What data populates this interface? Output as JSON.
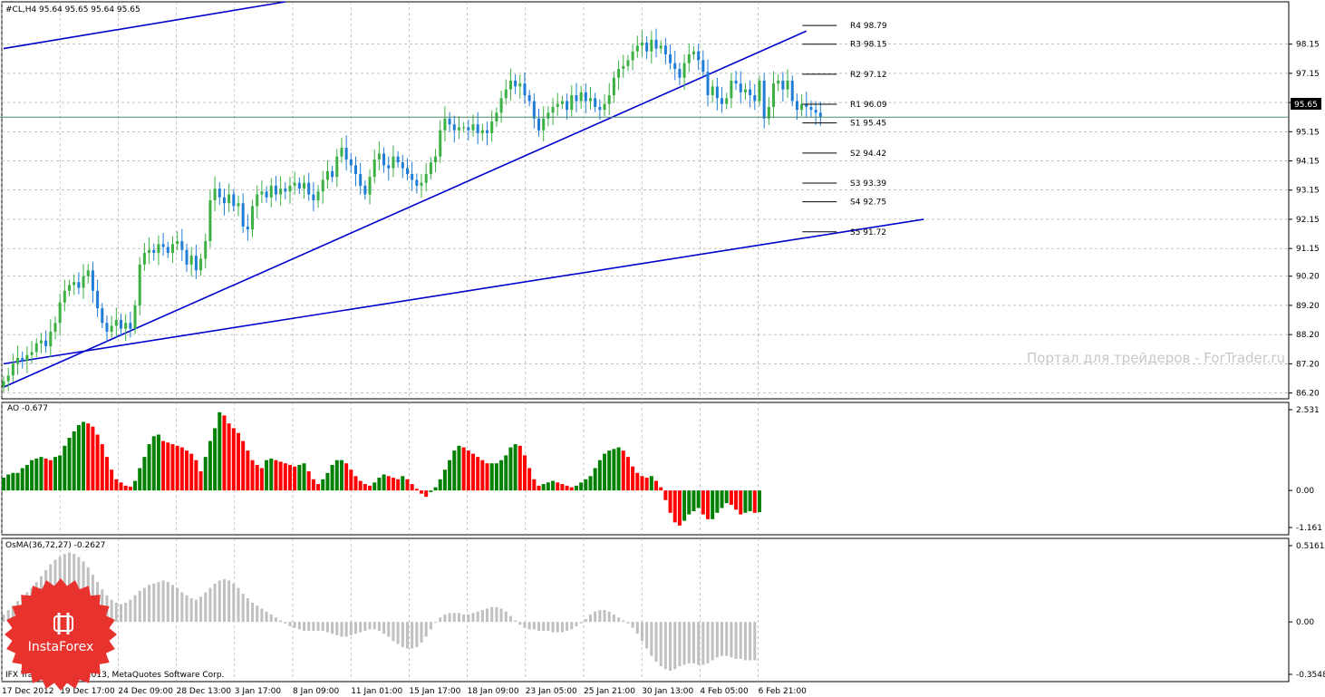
{
  "header": {
    "symbol_line": "#CL,H4  95.64 95.65 95.64 95.65"
  },
  "price_badge": "95.65",
  "watermark": "Портал для трейдеров - ForTrader.ru",
  "copyright": "IFX Trader, © 2001-2013, MetaQuotes Software Corp.",
  "logo_text": "InstaForex",
  "colors": {
    "bull": "#3cb043",
    "bear": "#1f7dd6",
    "ao_up": "#008000",
    "ao_down": "#ff0000",
    "osma": "#c0c0c0",
    "trend": "#0000cc",
    "grid": "#a0a0a0"
  },
  "chart_data": [
    {
      "type": "candlestick",
      "ylim": [
        86.0,
        99.6
      ],
      "y_ticks": [
        "98.15",
        "97.15",
        "96.15",
        "95.15",
        "94.15",
        "93.15",
        "92.15",
        "91.15",
        "90.20",
        "89.20",
        "88.20",
        "87.20",
        "86.20"
      ],
      "x_ticks": [
        "17 Dec 2012",
        "19 Dec 17:00",
        "24 Dec 09:00",
        "28 Dec 13:00",
        "3 Jan 17:00",
        "8 Jan 09:00",
        "11 Jan 01:00",
        "15 Jan 17:00",
        "18 Jan 09:00",
        "23 Jan 05:00",
        "25 Jan 21:00",
        "30 Jan 13:00",
        "4 Feb 05:00",
        "6 Feb 21:00"
      ],
      "closes": [
        86.6,
        86.8,
        87.2,
        87.4,
        87.3,
        87.5,
        87.6,
        87.9,
        88.0,
        87.8,
        88.3,
        88.6,
        89.3,
        89.7,
        89.9,
        90.0,
        89.8,
        90.2,
        90.4,
        89.7,
        89.1,
        88.6,
        88.3,
        88.5,
        88.7,
        88.4,
        88.6,
        88.4,
        89.2,
        90.6,
        91.0,
        91.1,
        91.0,
        91.3,
        91.2,
        91.0,
        91.3,
        91.4,
        91.1,
        90.6,
        90.9,
        90.4,
        90.8,
        91.4,
        92.8,
        93.2,
        92.9,
        92.7,
        93.0,
        92.6,
        92.7,
        91.9,
        91.8,
        92.6,
        93.0,
        93.1,
        92.9,
        93.3,
        93.0,
        93.2,
        93.1,
        93.3,
        93.4,
        93.2,
        93.4,
        93.0,
        92.8,
        93.1,
        93.5,
        93.8,
        93.6,
        94.3,
        94.6,
        94.2,
        94.0,
        93.7,
        93.3,
        93.0,
        93.6,
        94.2,
        94.4,
        94.0,
        93.9,
        94.3,
        94.1,
        93.9,
        93.7,
        93.5,
        93.3,
        93.4,
        93.7,
        94.1,
        94.3,
        95.2,
        95.6,
        95.4,
        95.2,
        95.3,
        95.3,
        95.2,
        95.4,
        95.1,
        95.2,
        95.1,
        95.5,
        95.8,
        96.3,
        96.6,
        96.9,
        96.7,
        96.8,
        96.4,
        96.2,
        95.6,
        95.2,
        95.6,
        95.8,
        96.0,
        96.1,
        96.2,
        95.9,
        96.4,
        96.2,
        96.5,
        96.2,
        96.3,
        96.0,
        95.9,
        96.1,
        96.4,
        97.0,
        97.3,
        97.4,
        97.6,
        97.9,
        98.1,
        98.2,
        97.9,
        98.3,
        98.0,
        98.1,
        97.8,
        97.5,
        97.3,
        97.0,
        97.5,
        97.8,
        97.9,
        97.6,
        97.2,
        96.4,
        96.7,
        96.3,
        96.1,
        96.3,
        96.9,
        96.8,
        96.5,
        96.6,
        96.4,
        96.2,
        96.9,
        95.6,
        96.0,
        96.8,
        96.9,
        96.6,
        96.9,
        96.2,
        95.9,
        96.1,
        96.0,
        95.9,
        95.8,
        95.65
      ],
      "pivots": [
        {
          "label": "R4",
          "value": "98.79"
        },
        {
          "label": "R3",
          "value": "98.15"
        },
        {
          "label": "R2",
          "value": "97.12"
        },
        {
          "label": "R1",
          "value": "96.09"
        },
        {
          "label": "S1",
          "value": "95.45"
        },
        {
          "label": "S2",
          "value": "94.42"
        },
        {
          "label": "S3",
          "value": "93.39"
        },
        {
          "label": "S4",
          "value": "92.75"
        },
        {
          "label": "S5",
          "value": "91.72"
        }
      ],
      "trendlines": [
        {
          "from": [
            0,
            98.0
          ],
          "to": [
            60,
            99.6
          ]
        },
        {
          "from": [
            0,
            86.4
          ],
          "to": [
            171,
            98.6
          ]
        },
        {
          "from": [
            0,
            87.2
          ],
          "to": [
            196,
            92.15
          ]
        }
      ]
    },
    {
      "type": "bar",
      "name": "AO",
      "title": "AO -0.677",
      "ylim": [
        -1.161,
        2.531
      ],
      "y_ticks": [
        "2.531",
        "0.00",
        "-1.161"
      ],
      "values": [
        0.4,
        0.5,
        0.55,
        0.55,
        0.7,
        0.8,
        0.95,
        1.0,
        1.05,
        1.0,
        0.95,
        1.05,
        1.1,
        1.4,
        1.65,
        1.85,
        2.05,
        2.15,
        2.1,
        2.0,
        1.75,
        1.45,
        1.05,
        0.65,
        0.35,
        0.25,
        0.15,
        0.12,
        0.3,
        0.7,
        1.05,
        1.45,
        1.7,
        1.75,
        1.55,
        1.5,
        1.45,
        1.4,
        1.35,
        1.25,
        1.15,
        0.95,
        0.6,
        1.05,
        1.55,
        1.95,
        2.45,
        2.35,
        2.1,
        1.95,
        1.8,
        1.55,
        1.25,
        0.95,
        0.8,
        0.7,
        0.95,
        1.0,
        0.95,
        0.9,
        0.85,
        0.8,
        0.75,
        0.8,
        0.85,
        0.6,
        0.35,
        0.2,
        0.35,
        0.55,
        0.8,
        0.95,
        0.95,
        0.85,
        0.65,
        0.45,
        0.3,
        0.2,
        0.15,
        0.25,
        0.4,
        0.5,
        0.45,
        0.4,
        0.35,
        0.45,
        0.35,
        0.2,
        0.05,
        -0.1,
        -0.2,
        -0.05,
        0.1,
        0.35,
        0.65,
        0.95,
        1.25,
        1.4,
        1.35,
        1.25,
        1.15,
        1.05,
        0.95,
        0.85,
        0.85,
        0.85,
        0.95,
        1.1,
        1.35,
        1.45,
        1.4,
        1.1,
        0.7,
        0.35,
        0.15,
        0.2,
        0.25,
        0.3,
        0.25,
        0.2,
        0.15,
        0.1,
        0.15,
        0.25,
        0.35,
        0.45,
        0.7,
        0.95,
        1.15,
        1.25,
        1.3,
        1.35,
        1.25,
        1.05,
        0.75,
        0.55,
        0.45,
        0.4,
        0.45,
        0.3,
        0.1,
        -0.3,
        -0.7,
        -1.0,
        -1.1,
        -0.95,
        -0.75,
        -0.65,
        -0.55,
        -0.75,
        -0.9,
        -0.9,
        -0.7,
        -0.55,
        -0.4,
        -0.45,
        -0.6,
        -0.75,
        -0.7,
        -0.65,
        -0.7,
        -0.68
      ],
      "colors_by_trend": true
    },
    {
      "type": "bar",
      "name": "OsMA",
      "title": "OsMA(36,72,27) -0.2627",
      "ylim": [
        -0.3548,
        0.5161
      ],
      "y_ticks": [
        "0.5161",
        "0.00",
        "-0.3548"
      ],
      "values": [
        0.05,
        0.08,
        0.11,
        0.14,
        0.17,
        0.2,
        0.23,
        0.27,
        0.31,
        0.35,
        0.39,
        0.42,
        0.44,
        0.46,
        0.47,
        0.46,
        0.44,
        0.41,
        0.37,
        0.32,
        0.27,
        0.22,
        0.18,
        0.15,
        0.13,
        0.12,
        0.13,
        0.15,
        0.18,
        0.21,
        0.23,
        0.25,
        0.26,
        0.27,
        0.28,
        0.27,
        0.25,
        0.23,
        0.2,
        0.18,
        0.16,
        0.15,
        0.17,
        0.2,
        0.23,
        0.26,
        0.28,
        0.29,
        0.28,
        0.26,
        0.23,
        0.19,
        0.16,
        0.13,
        0.11,
        0.09,
        0.07,
        0.05,
        0.03,
        0.01,
        -0.01,
        -0.03,
        -0.04,
        -0.05,
        -0.06,
        -0.06,
        -0.06,
        -0.06,
        -0.06,
        -0.07,
        -0.08,
        -0.09,
        -0.1,
        -0.1,
        -0.09,
        -0.08,
        -0.07,
        -0.06,
        -0.05,
        -0.05,
        -0.06,
        -0.08,
        -0.1,
        -0.13,
        -0.15,
        -0.17,
        -0.18,
        -0.18,
        -0.17,
        -0.14,
        -0.1,
        -0.05,
        0.0,
        0.03,
        0.05,
        0.06,
        0.06,
        0.06,
        0.05,
        0.05,
        0.06,
        0.07,
        0.08,
        0.09,
        0.1,
        0.1,
        0.09,
        0.07,
        0.04,
        0.01,
        -0.02,
        -0.04,
        -0.05,
        -0.05,
        -0.06,
        -0.06,
        -0.06,
        -0.07,
        -0.07,
        -0.07,
        -0.06,
        -0.05,
        -0.03,
        -0.01,
        0.02,
        0.05,
        0.07,
        0.08,
        0.08,
        0.07,
        0.05,
        0.03,
        0.01,
        -0.01,
        -0.04,
        -0.08,
        -0.13,
        -0.18,
        -0.23,
        -0.27,
        -0.3,
        -0.32,
        -0.33,
        -0.32,
        -0.3,
        -0.29,
        -0.28,
        -0.28,
        -0.29,
        -0.29,
        -0.28,
        -0.26,
        -0.24,
        -0.23,
        -0.23,
        -0.24,
        -0.25,
        -0.25,
        -0.26,
        -0.26,
        -0.26
      ]
    }
  ]
}
